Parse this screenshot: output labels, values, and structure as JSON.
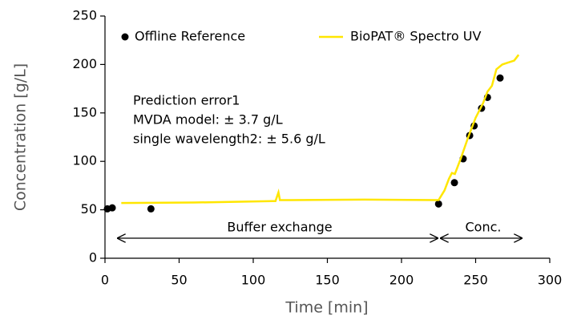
{
  "chart_data": {
    "type": "line",
    "x_label": "Time [min]",
    "y_label": "Concentration [g/L]",
    "xlim": [
      0,
      300
    ],
    "xticks": [
      0,
      50,
      100,
      150,
      200,
      250,
      300
    ],
    "ylim": [
      0,
      250
    ],
    "yticks": [
      0,
      50,
      100,
      150,
      200,
      250
    ],
    "legend": "top",
    "series": [
      {
        "name": "Offline Reference",
        "type": "scatter",
        "color": "#000000",
        "x": [
          1.6,
          4.9,
          31,
          225,
          235.7,
          241.6,
          246,
          249,
          254,
          258,
          266.5
        ],
        "values": [
          51,
          52,
          51,
          56,
          78,
          102.6,
          126.7,
          136.6,
          154.8,
          166,
          186
        ]
      },
      {
        "name": "BioPAT® Spectro UV",
        "type": "line",
        "color": "#ffe600",
        "x": [
          11,
          60,
          113,
          115,
          117,
          118,
          125,
          175,
          225,
          229,
          232,
          234,
          236,
          240,
          245,
          250,
          255,
          258,
          261,
          264,
          268,
          272,
          276,
          279
        ],
        "values": [
          57,
          57.5,
          59,
          59,
          68,
          60,
          60,
          60.5,
          60,
          70,
          82,
          88,
          87,
          103,
          125,
          145,
          160,
          172,
          178,
          195,
          200,
          202,
          204,
          210
        ]
      }
    ],
    "annotations": [
      "Prediction error1",
      "MVDA model: ± 3.7 g/L",
      "single wavelength2: ± 5.6 g/L",
      "Buffer exchange",
      "Conc."
    ]
  }
}
